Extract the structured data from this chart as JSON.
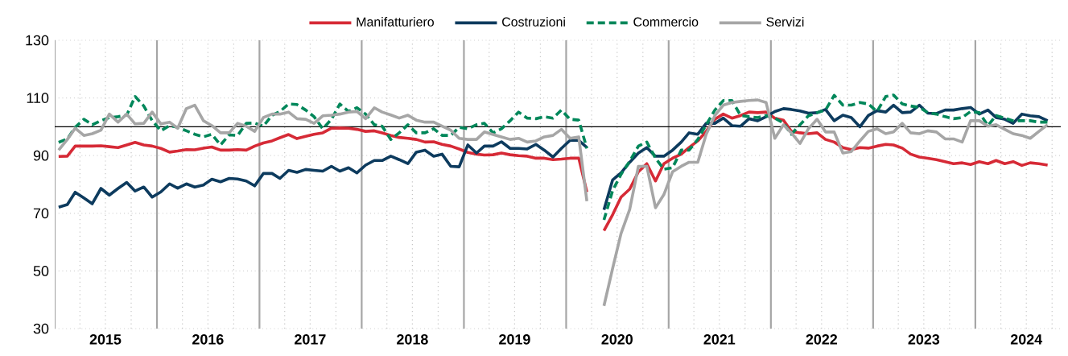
{
  "chart_data": {
    "type": "line",
    "x": [
      "2015-01-15",
      "2015-02-15",
      "2015-03-15",
      "2015-04-15",
      "2015-05-15",
      "2015-06-15",
      "2015-07-15",
      "2015-08-15",
      "2015-09-15",
      "2015-10-15",
      "2015-11-15",
      "2015-12-15",
      "2016-01-15",
      "2016-02-15",
      "2016-03-15",
      "2016-04-15",
      "2016-05-15",
      "2016-06-15",
      "2016-07-15",
      "2016-08-15",
      "2016-09-15",
      "2016-10-15",
      "2016-11-15",
      "2016-12-15",
      "2017-01-15",
      "2017-02-15",
      "2017-03-15",
      "2017-04-15",
      "2017-05-15",
      "2017-06-15",
      "2017-07-15",
      "2017-08-15",
      "2017-09-15",
      "2017-10-15",
      "2017-11-15",
      "2017-12-15",
      "2018-01-15",
      "2018-02-15",
      "2018-03-15",
      "2018-04-15",
      "2018-05-15",
      "2018-06-15",
      "2018-07-15",
      "2018-08-15",
      "2018-09-15",
      "2018-10-15",
      "2018-11-15",
      "2018-12-15",
      "2019-01-15",
      "2019-02-15",
      "2019-03-15",
      "2019-04-15",
      "2019-05-15",
      "2019-06-15",
      "2019-07-15",
      "2019-08-15",
      "2019-09-15",
      "2019-10-15",
      "2019-11-15",
      "2019-12-15",
      "2020-01-15",
      "2020-02-15",
      "2020-03-15",
      "2020-04-15",
      "2020-05-15",
      "2020-06-15",
      "2020-07-15",
      "2020-08-15",
      "2020-09-15",
      "2020-10-15",
      "2020-11-15",
      "2020-12-15",
      "2021-01-15",
      "2021-02-15",
      "2021-03-15",
      "2021-04-15",
      "2021-05-15",
      "2021-06-15",
      "2021-07-15",
      "2021-08-15",
      "2021-09-15",
      "2021-10-15",
      "2021-11-15",
      "2021-12-15",
      "2022-01-15",
      "2022-02-15",
      "2022-03-15",
      "2022-04-15",
      "2022-05-15",
      "2022-06-15",
      "2022-07-15",
      "2022-08-15",
      "2022-09-15",
      "2022-10-15",
      "2022-11-15",
      "2022-12-15",
      "2023-01-15",
      "2023-02-15",
      "2023-03-15",
      "2023-04-15",
      "2023-05-15",
      "2023-06-15",
      "2023-07-15",
      "2023-08-15",
      "2023-09-15",
      "2023-10-15",
      "2023-11-15",
      "2023-12-15",
      "2024-01-15",
      "2024-02-15",
      "2024-03-15",
      "2024-04-15",
      "2024-05-15",
      "2024-06-15",
      "2024-07-15",
      "2024-08-15",
      "2024-09-15"
    ],
    "series": [
      {
        "name": "Manifatturiero",
        "color": "#d62a36",
        "values": [
          89.7,
          89.8,
          93.3,
          93.3,
          93.3,
          93.4,
          93.1,
          92.8,
          93.7,
          94.6,
          93.7,
          93.3,
          92.5,
          91.2,
          91.6,
          92.1,
          92.0,
          92.6,
          93.0,
          91.9,
          91.9,
          92.1,
          91.9,
          93.3,
          94.4,
          95.1,
          96.2,
          97.3,
          95.9,
          96.7,
          97.4,
          97.9,
          99.5,
          99.6,
          99.5,
          99.1,
          98.4,
          98.6,
          97.9,
          97.0,
          96.3,
          96.0,
          95.6,
          94.7,
          94.8,
          93.9,
          93.3,
          92.3,
          91.1,
          90.5,
          90.2,
          90.3,
          90.9,
          90.3,
          90.0,
          89.8,
          89.1,
          89.1,
          88.6,
          88.8,
          89.1,
          89.1,
          77.4,
          null,
          64.0,
          69.5,
          75.6,
          78.4,
          84.4,
          87.2,
          81.2,
          87.2,
          89.1,
          90.5,
          92.8,
          95.1,
          98.4,
          102.6,
          104.4,
          103.0,
          103.9,
          105.1,
          104.9,
          105.1,
          103.0,
          102.3,
          98.4,
          97.9,
          97.6,
          97.9,
          95.6,
          94.7,
          92.8,
          92.1,
          92.8,
          92.6,
          93.3,
          93.9,
          93.7,
          92.6,
          90.5,
          89.5,
          89.1,
          88.6,
          87.9,
          87.2,
          87.5,
          86.9,
          87.9,
          87.2,
          88.3,
          87.2,
          87.9,
          86.6,
          87.5,
          87.2,
          86.7
        ]
      },
      {
        "name": "Costruzioni",
        "color": "#0d3b5e",
        "values": [
          72.1,
          73.0,
          77.3,
          75.3,
          73.3,
          78.6,
          76.3,
          78.6,
          80.7,
          77.7,
          79.1,
          75.6,
          77.4,
          80.2,
          78.7,
          80.2,
          79.1,
          79.8,
          81.8,
          80.9,
          82.1,
          81.9,
          81.2,
          79.5,
          83.8,
          83.8,
          82.1,
          84.9,
          84.2,
          85.2,
          84.9,
          84.6,
          86.3,
          84.6,
          85.8,
          84.0,
          86.7,
          88.3,
          88.3,
          89.8,
          88.6,
          87.2,
          91.2,
          91.9,
          89.8,
          90.5,
          86.3,
          86.1,
          93.7,
          90.9,
          93.3,
          93.3,
          94.8,
          92.5,
          92.5,
          92.3,
          93.9,
          91.9,
          89.5,
          92.5,
          95.3,
          95.3,
          92.8,
          null,
          71.2,
          81.6,
          84.0,
          87.7,
          90.9,
          92.8,
          89.8,
          89.8,
          91.9,
          94.7,
          97.9,
          97.4,
          101.2,
          101.2,
          103.0,
          100.4,
          100.2,
          102.8,
          102.1,
          103.5,
          105.3,
          106.3,
          106.0,
          105.5,
          104.7,
          104.9,
          106.0,
          102.1,
          104.0,
          103.2,
          100.0,
          103.9,
          105.6,
          105.1,
          107.5,
          104.9,
          105.1,
          107.5,
          104.7,
          104.6,
          105.8,
          105.8,
          106.3,
          106.7,
          104.4,
          105.8,
          103.2,
          102.6,
          101.2,
          104.4,
          103.8,
          103.5,
          102.1
        ]
      },
      {
        "name": "Commercio",
        "color": "#00875a",
        "line_style": "dashed",
        "values": [
          94.6,
          95.8,
          99.8,
          102.6,
          100.7,
          102.1,
          103.2,
          103.5,
          104.0,
          110.5,
          107.2,
          102.1,
          98.6,
          100.4,
          99.8,
          98.6,
          97.4,
          96.5,
          97.4,
          93.7,
          97.2,
          97.0,
          101.2,
          101.3,
          100.2,
          104.0,
          105.3,
          107.9,
          107.7,
          105.8,
          103.5,
          99.3,
          102.6,
          107.9,
          105.3,
          106.6,
          104.4,
          100.7,
          100.2,
          95.6,
          97.9,
          100.7,
          97.9,
          97.9,
          99.3,
          97.0,
          97.0,
          99.8,
          99.3,
          100.7,
          101.2,
          97.9,
          99.3,
          102.1,
          105.1,
          103.0,
          102.8,
          103.5,
          103.0,
          105.8,
          102.6,
          102.3,
          92.5,
          null,
          67.7,
          77.9,
          83.5,
          88.1,
          93.3,
          94.7,
          89.1,
          85.3,
          85.8,
          91.9,
          91.9,
          95.6,
          100.7,
          105.8,
          109.1,
          109.1,
          103.9,
          103.5,
          103.2,
          103.9,
          103.0,
          101.3,
          97.4,
          100.7,
          103.8,
          104.9,
          105.8,
          110.9,
          107.5,
          107.5,
          108.4,
          107.9,
          105.3,
          110.5,
          111.0,
          107.9,
          107.2,
          106.7,
          104.9,
          104.4,
          103.5,
          102.8,
          103.2,
          105.3,
          104.9,
          100.4,
          103.9,
          103.0,
          102.1,
          102.1,
          102.1,
          101.6,
          101.6
        ]
      },
      {
        "name": "Servizi",
        "color": "#a6a6a6",
        "values": [
          91.9,
          95.6,
          99.5,
          97.0,
          97.6,
          98.8,
          104.4,
          101.6,
          104.4,
          101.0,
          101.2,
          105.1,
          101.0,
          101.6,
          99.5,
          106.3,
          107.5,
          102.1,
          100.4,
          97.9,
          97.9,
          101.2,
          100.2,
          98.4,
          103.2,
          104.4,
          104.4,
          105.1,
          102.8,
          102.6,
          101.2,
          103.8,
          104.0,
          104.4,
          105.1,
          105.3,
          102.8,
          106.6,
          105.1,
          104.1,
          103.0,
          104.0,
          102.3,
          101.6,
          101.6,
          100.2,
          98.8,
          96.0,
          95.6,
          95.6,
          98.2,
          97.3,
          96.5,
          95.6,
          96.0,
          94.7,
          95.1,
          96.5,
          97.0,
          99.1,
          96.0,
          96.5,
          74.2,
          null,
          37.9,
          50.9,
          63.0,
          71.4,
          86.3,
          86.3,
          71.9,
          76.5,
          84.4,
          86.3,
          87.7,
          87.7,
          97.4,
          103.9,
          107.5,
          108.4,
          108.8,
          109.1,
          109.3,
          108.4,
          96.0,
          100.7,
          97.9,
          94.2,
          99.3,
          102.6,
          98.2,
          98.2,
          90.9,
          91.4,
          95.1,
          98.4,
          99.3,
          97.6,
          98.2,
          101.2,
          97.9,
          97.6,
          98.6,
          98.2,
          95.8,
          95.8,
          94.7,
          102.1,
          102.1,
          100.2,
          100.7,
          99.1,
          97.6,
          97.0,
          96.0,
          98.4,
          100.7
        ]
      }
    ],
    "xlim": [
      "2015-01",
      "2024-11"
    ],
    "xticks": [
      {
        "value": "2015-01",
        "label": null
      },
      {
        "value": "2015-04",
        "label": null
      },
      {
        "value": "2015-07",
        "label": "2015"
      },
      {
        "value": "2015-10",
        "label": null
      },
      {
        "value": "2016-01",
        "label": null
      },
      {
        "value": "2016-04",
        "label": null
      },
      {
        "value": "2016-07",
        "label": "2016"
      },
      {
        "value": "2016-10",
        "label": null
      },
      {
        "value": "2017-01",
        "label": null
      },
      {
        "value": "2017-04",
        "label": null
      },
      {
        "value": "2017-07",
        "label": "2017"
      },
      {
        "value": "2017-10",
        "label": null
      },
      {
        "value": "2018-01",
        "label": null
      },
      {
        "value": "2018-04",
        "label": null
      },
      {
        "value": "2018-07",
        "label": "2018"
      },
      {
        "value": "2018-10",
        "label": null
      },
      {
        "value": "2019-01",
        "label": null
      },
      {
        "value": "2019-04",
        "label": null
      },
      {
        "value": "2019-07",
        "label": "2019"
      },
      {
        "value": "2019-10",
        "label": null
      },
      {
        "value": "2020-01",
        "label": null
      },
      {
        "value": "2020-04",
        "label": null
      },
      {
        "value": "2020-07",
        "label": "2020"
      },
      {
        "value": "2020-10",
        "label": null
      },
      {
        "value": "2021-01",
        "label": null
      },
      {
        "value": "2021-04",
        "label": null
      },
      {
        "value": "2021-07",
        "label": "2021"
      },
      {
        "value": "2021-10",
        "label": null
      },
      {
        "value": "2022-01",
        "label": null
      },
      {
        "value": "2022-04",
        "label": null
      },
      {
        "value": "2022-07",
        "label": "2022"
      },
      {
        "value": "2022-10",
        "label": null
      },
      {
        "value": "2023-01",
        "label": null
      },
      {
        "value": "2023-04",
        "label": null
      },
      {
        "value": "2023-07",
        "label": "2023"
      },
      {
        "value": "2023-10",
        "label": null
      },
      {
        "value": "2024-01",
        "label": null
      },
      {
        "value": "2024-04",
        "label": null
      },
      {
        "value": "2024-07",
        "label": "2024"
      },
      {
        "value": "2024-10",
        "label": null
      }
    ],
    "ylim": [
      30,
      130
    ],
    "yticks": [
      30,
      50,
      70,
      90,
      110,
      130
    ],
    "ref_lines": [
      {
        "axis": "y",
        "value": 100,
        "color": "#000000"
      }
    ],
    "grid": true,
    "legend": "top"
  }
}
